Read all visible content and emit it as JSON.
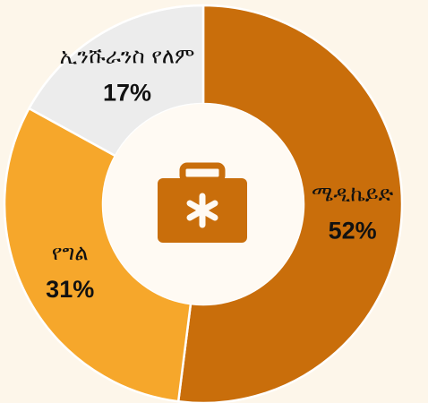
{
  "chart_data": {
    "type": "donut",
    "categories": [
      "ሜዲኬይድ",
      "የግል",
      "ኢንሹራንስ የለም"
    ],
    "values": [
      52,
      31,
      17
    ],
    "value_labels": [
      "52%",
      "31%",
      "17%"
    ],
    "colors": [
      "#c96e0b",
      "#f6a72b",
      "#ececec"
    ]
  }
}
